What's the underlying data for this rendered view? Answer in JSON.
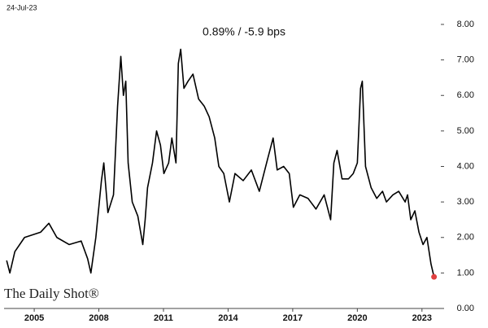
{
  "chart_data": {
    "type": "line",
    "title": "0.89% / -5.9 bps",
    "date_label": "24-Jul-23",
    "watermark": "The Daily Shot®",
    "color": "#000000",
    "end_marker_color": "#e04040",
    "x": [
      2003.72,
      2003.87,
      2004.1,
      2004.55,
      2005.3,
      2005.68,
      2006.05,
      2006.62,
      2007.18,
      2007.48,
      2007.63,
      2007.86,
      2008.12,
      2008.23,
      2008.42,
      2008.68,
      2008.87,
      2009.02,
      2009.14,
      2009.25,
      2009.36,
      2009.55,
      2009.81,
      2010.04,
      2010.15,
      2010.26,
      2010.49,
      2010.68,
      2010.86,
      2011.02,
      2011.24,
      2011.39,
      2011.58,
      2011.69,
      2011.8,
      2011.95,
      2012.14,
      2012.37,
      2012.63,
      2012.89,
      2013.12,
      2013.38,
      2013.57,
      2013.8,
      2014.06,
      2014.32,
      2014.7,
      2015.08,
      2015.45,
      2015.83,
      2016.09,
      2016.28,
      2016.58,
      2016.84,
      2017.03,
      2017.33,
      2017.71,
      2018.08,
      2018.46,
      2018.76,
      2018.91,
      2019.06,
      2019.29,
      2019.59,
      2019.81,
      2020.0,
      2020.15,
      2020.23,
      2020.38,
      2020.64,
      2020.9,
      2021.17,
      2021.35,
      2021.65,
      2021.92,
      2022.22,
      2022.33,
      2022.48,
      2022.67,
      2022.86,
      2023.05,
      2023.23,
      2023.42,
      2023.56
    ],
    "values": [
      1.35,
      1.0,
      1.6,
      2.0,
      2.15,
      2.4,
      2.0,
      1.8,
      1.9,
      1.4,
      1.0,
      2.0,
      3.6,
      4.1,
      2.7,
      3.2,
      5.7,
      7.1,
      6.0,
      6.4,
      4.1,
      3.0,
      2.6,
      1.8,
      2.5,
      3.4,
      4.1,
      5.0,
      4.6,
      3.8,
      4.1,
      4.8,
      4.1,
      6.9,
      7.3,
      6.2,
      6.4,
      6.6,
      5.9,
      5.7,
      5.4,
      4.8,
      4.0,
      3.8,
      3.0,
      3.8,
      3.6,
      3.9,
      3.3,
      4.2,
      4.8,
      3.9,
      4.0,
      3.8,
      2.85,
      3.2,
      3.1,
      2.8,
      3.2,
      2.5,
      4.1,
      4.45,
      3.65,
      3.65,
      3.8,
      4.1,
      6.2,
      6.4,
      4.0,
      3.4,
      3.1,
      3.3,
      3.0,
      3.2,
      3.3,
      3.0,
      3.2,
      2.5,
      2.75,
      2.15,
      1.8,
      2.0,
      1.25,
      0.89
    ],
    "xlim": [
      2003.6,
      2023.8
    ],
    "xticks": [
      2005,
      2008,
      2011,
      2014,
      2017,
      2020,
      2023
    ],
    "ylim": [
      0,
      8
    ],
    "yticks": [
      {
        "value": 0,
        "label": "0.00"
      },
      {
        "value": 1,
        "label": "1.00"
      },
      {
        "value": 2,
        "label": "2.00"
      },
      {
        "value": 3,
        "label": "3.00"
      },
      {
        "value": 4,
        "label": "4.00"
      },
      {
        "value": 5,
        "label": "5.00"
      },
      {
        "value": 6,
        "label": "6.00"
      },
      {
        "value": 7,
        "label": "7.00"
      },
      {
        "value": 8,
        "label": "8.00"
      }
    ],
    "grid": false
  }
}
